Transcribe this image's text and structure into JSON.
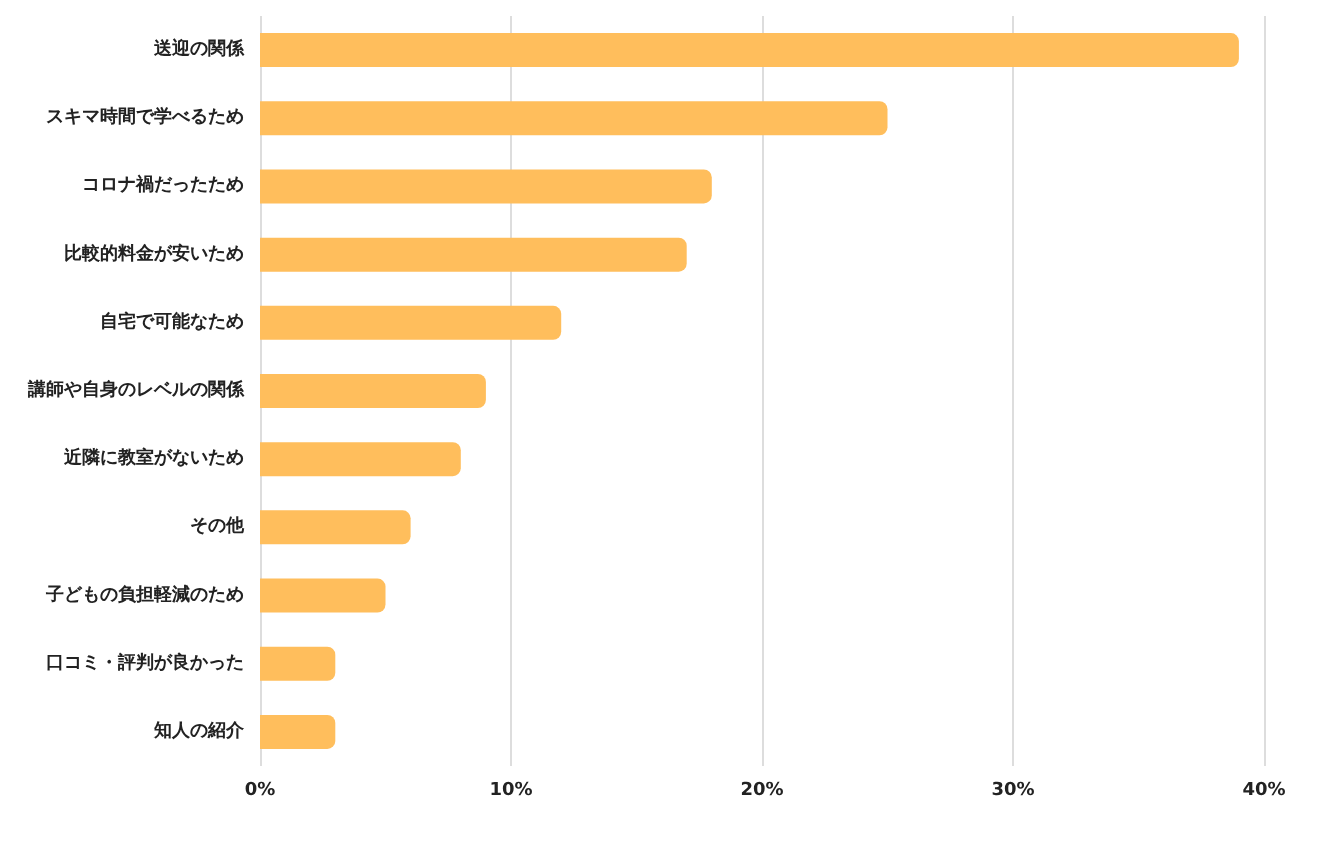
{
  "chart_data": {
    "type": "bar",
    "orientation": "horizontal",
    "categories": [
      "送迎の関係",
      "スキマ時間で学べるため",
      "コロナ禍だったため",
      "比較的料金が安いため",
      "自宅で可能なため",
      "講師や自身のレベルの関係",
      "近隣に教室がないため",
      "その他",
      "子どもの負担軽減のため",
      "口コミ・評判が良かった",
      "知人の紹介"
    ],
    "values": [
      39,
      25,
      18,
      17,
      12,
      9,
      8,
      6,
      5,
      3,
      3
    ],
    "color": "#ffbe5c",
    "xlim": [
      0,
      40
    ],
    "xticks": [
      {
        "value": 0,
        "label": "0%"
      },
      {
        "value": 10,
        "label": "10%"
      },
      {
        "value": 20,
        "label": "20%"
      },
      {
        "value": 30,
        "label": "30%"
      },
      {
        "value": 40,
        "label": "40%"
      }
    ],
    "grid": "x"
  }
}
